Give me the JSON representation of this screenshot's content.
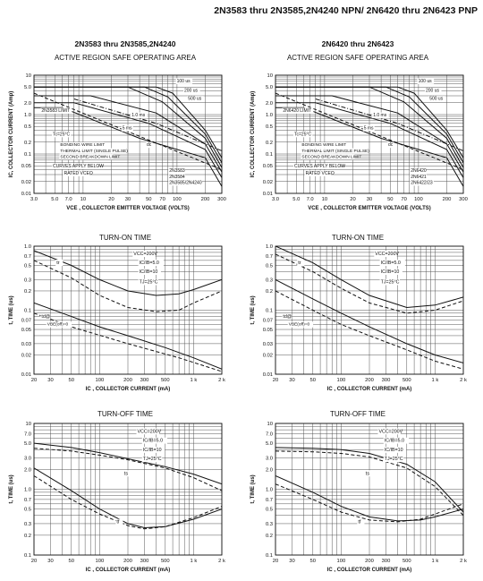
{
  "header": {
    "title": "2N3583 thru 2N3585,2N4240 NPN/ 2N6420 thru 2N6423 PNP",
    "left_section": "2N3583 thru 2N3585,2N4240",
    "right_section": "2N6420 thru 2N6423"
  },
  "chart_data": [
    {
      "id": "soa-npn",
      "type": "line",
      "title": "ACTIVE REGION SAFE OPERATING AREA",
      "xlabel": "VCE , COLLECTOR EMITTER VOLTAGE (VOLTS)",
      "ylabel": "IC, COLLECTOR CURRENT (Amp)",
      "xscale": "log",
      "yscale": "log",
      "xlim": [
        3,
        300
      ],
      "ylim": [
        0.01,
        10
      ],
      "xticks": [
        3,
        5,
        7,
        10,
        20,
        30,
        50,
        70,
        100,
        200,
        300
      ],
      "xtick_labels": [
        "3.0",
        "5.0",
        "7.0",
        "10",
        "20",
        "30",
        "50",
        "70",
        "100",
        "200",
        "300"
      ],
      "yticks": [
        0.01,
        0.02,
        0.05,
        0.1,
        0.2,
        0.5,
        1,
        2,
        5,
        10
      ],
      "ytick_labels": [
        "0.01",
        "0.02",
        "0.05",
        "0.1",
        "0.2",
        "0.5",
        "1.0",
        "2.0",
        "5.0",
        "10"
      ],
      "series": [
        {
          "name": "100 us",
          "dash": "solid",
          "x": [
            3,
            60,
            90,
            200,
            300
          ],
          "y": [
            5,
            5,
            3.5,
            0.4,
            0.08
          ]
        },
        {
          "name": "200 us",
          "dash": "solid",
          "x": [
            3,
            45,
            80,
            200,
            300
          ],
          "y": [
            5,
            5,
            2.8,
            0.32,
            0.06
          ]
        },
        {
          "name": "500 us",
          "dash": "solid",
          "x": [
            3,
            30,
            70,
            200,
            300
          ],
          "y": [
            5,
            5,
            2.1,
            0.25,
            0.045
          ]
        },
        {
          "name": "1.0 ms",
          "dash": "solid",
          "x": [
            3,
            12,
            60,
            200,
            300
          ],
          "y": [
            3,
            3,
            1.1,
            0.18,
            0.035
          ]
        },
        {
          "name": "5 ms",
          "dash": "solid",
          "x": [
            3,
            8,
            50,
            200,
            300
          ],
          "y": [
            2,
            2,
            0.6,
            0.13,
            0.025
          ]
        },
        {
          "name": "dc",
          "dash": "solid",
          "x": [
            3,
            6,
            40,
            200,
            300
          ],
          "y": [
            1.5,
            1.5,
            0.25,
            0.08,
            0.015
          ]
        },
        {
          "name": "",
          "dash": "dashed",
          "x": [
            3,
            40,
            300
          ],
          "y": [
            3.5,
            0.28,
            0.04
          ]
        },
        {
          "name": "",
          "dash": "dashdot",
          "x": [
            8,
            60,
            300
          ],
          "y": [
            2.5,
            0.6,
            0.12
          ]
        }
      ],
      "annotations": {
        "t_100": "100 us",
        "t_200": "200 us",
        "t_500": "500 us",
        "t_1ms": "1.0 ms",
        "t_5ms": "5 ms",
        "t_dc": "dc",
        "limit": "2N3583 LIMIT",
        "temp": "Tc=25°C",
        "legend_bonding": "BONDING WIRE LIMIT",
        "legend_thermal": "THERMAL LIMIT (SINGLE PULSE)",
        "legend_second": "SECOND BREAKDOWN LIMIT",
        "curves1": "CURVES APPLY BELOW",
        "curves2": "RATED VCEO",
        "dev1": "2N3583",
        "dev2": "2N3584",
        "dev3": "2N3585/2N4240"
      }
    },
    {
      "id": "soa-pnp",
      "type": "line",
      "title": "ACTIVE REGION SAFE OPERATING AREA",
      "xlabel": "VCE , COLLECTOR EMITTER VOLTAGE (VOLTS)",
      "ylabel": "IC, COLLECTOR CURRENT (Amp)",
      "xscale": "log",
      "yscale": "log",
      "xlim": [
        3,
        300
      ],
      "ylim": [
        0.01,
        10
      ],
      "xticks": [
        3,
        5,
        7,
        10,
        20,
        30,
        50,
        70,
        100,
        200,
        300
      ],
      "xtick_labels": [
        "3.0",
        "5.0",
        "7.0",
        "10",
        "20",
        "30",
        "50",
        "70",
        "100",
        "200",
        "300"
      ],
      "yticks": [
        0.01,
        0.02,
        0.05,
        0.1,
        0.2,
        0.5,
        1,
        2,
        5,
        10
      ],
      "ytick_labels": [
        "0.01",
        "0.02",
        "0.05",
        "0.1",
        "0.2",
        "0.5",
        "1.0",
        "2.0",
        "5.0",
        "10"
      ],
      "series": [
        {
          "name": "100 us",
          "dash": "solid",
          "x": [
            3,
            60,
            90,
            200,
            300
          ],
          "y": [
            5,
            5,
            3.5,
            0.4,
            0.08
          ]
        },
        {
          "name": "200 us",
          "dash": "solid",
          "x": [
            3,
            45,
            80,
            200,
            300
          ],
          "y": [
            5,
            5,
            2.8,
            0.32,
            0.06
          ]
        },
        {
          "name": "500 us",
          "dash": "solid",
          "x": [
            3,
            30,
            70,
            200,
            300
          ],
          "y": [
            5,
            5,
            2.1,
            0.25,
            0.045
          ]
        },
        {
          "name": "1.0 ms",
          "dash": "solid",
          "x": [
            3,
            12,
            60,
            200,
            300
          ],
          "y": [
            3,
            3,
            1.1,
            0.18,
            0.035
          ]
        },
        {
          "name": "5 ms",
          "dash": "solid",
          "x": [
            3,
            8,
            50,
            200,
            300
          ],
          "y": [
            2,
            2,
            0.6,
            0.13,
            0.025
          ]
        },
        {
          "name": "dc",
          "dash": "solid",
          "x": [
            3,
            6,
            40,
            200,
            300
          ],
          "y": [
            1.5,
            1.5,
            0.25,
            0.08,
            0.015
          ]
        },
        {
          "name": "",
          "dash": "dashed",
          "x": [
            3,
            40,
            300
          ],
          "y": [
            3.5,
            0.28,
            0.04
          ]
        },
        {
          "name": "",
          "dash": "dashdot",
          "x": [
            8,
            60,
            300
          ],
          "y": [
            2.5,
            0.6,
            0.12
          ]
        }
      ],
      "annotations": {
        "t_100": "100 us",
        "t_200": "200 us",
        "t_500": "500 us",
        "t_1ms": "1.0 ms",
        "t_5ms": "5 ms",
        "t_dc": "dc",
        "limit": "2N6420 LIMIT",
        "temp": "Tc=25°C",
        "legend_bonding": "BONDING WIRE LIMIT",
        "legend_thermal": "THERMAL LIMIT (SINGLE PULSE)",
        "legend_second": "SECOND BREAKDOWN LIMIT",
        "curves1": "CURVES APPLY BELOW",
        "curves2": "RATED VCEO",
        "dev1": "2N6420",
        "dev2": "2N6421",
        "dev3": "2N6422/23"
      }
    },
    {
      "id": "ton-npn",
      "type": "line",
      "title": "TURN-ON TIME",
      "xlabel": "IC , COLLECTOR CURRENT (mA)",
      "ylabel": "t, TIME (us)",
      "xscale": "log",
      "yscale": "log",
      "xlim": [
        20,
        2000
      ],
      "ylim": [
        0.01,
        1
      ],
      "xticks": [
        20,
        30,
        50,
        100,
        200,
        300,
        500,
        1000,
        2000
      ],
      "xtick_labels": [
        "20",
        "30",
        "50",
        "100",
        "200",
        "300",
        "500",
        "1 k",
        "2 k"
      ],
      "yticks": [
        0.01,
        0.02,
        0.03,
        0.05,
        0.07,
        0.1,
        0.2,
        0.3,
        0.5,
        0.7,
        1
      ],
      "ytick_labels": [
        "0.01",
        "0.02",
        "0.03",
        "0.05",
        "0.07",
        "0.1",
        "0.2",
        "0.3",
        "0.5",
        "0.7",
        "1.0"
      ],
      "series": [
        {
          "name": "tr",
          "dash": "solid",
          "x": [
            20,
            50,
            100,
            200,
            400,
            700,
            1000,
            2000
          ],
          "y": [
            0.85,
            0.5,
            0.3,
            0.2,
            0.17,
            0.18,
            0.21,
            0.3
          ]
        },
        {
          "name": "tr IB/IB=10",
          "dash": "dashed",
          "x": [
            20,
            50,
            100,
            200,
            400,
            700,
            1000,
            2000
          ],
          "y": [
            0.6,
            0.32,
            0.17,
            0.11,
            0.095,
            0.1,
            0.13,
            0.2
          ]
        },
        {
          "name": "td",
          "dash": "solid",
          "x": [
            20,
            40,
            100,
            200,
            500,
            1000,
            2000
          ],
          "y": [
            0.13,
            0.09,
            0.055,
            0.04,
            0.026,
            0.018,
            0.012
          ]
        },
        {
          "name": "td dashed",
          "dash": "dashed",
          "x": [
            20,
            50,
            200,
            700,
            2000
          ],
          "y": [
            0.09,
            0.055,
            0.03,
            0.018,
            0.011
          ]
        }
      ],
      "annotations": {
        "l1": "VCC=200V",
        "l2": "IC/IB=5.0",
        "l3": "IC/IB=10",
        "l4": "TJ=25°C",
        "tr": "tr",
        "td": "td@",
        "vbe": "VBE(off)=0"
      }
    },
    {
      "id": "ton-pnp",
      "type": "line",
      "title": "TURN-ON TIME",
      "xlabel": "IC , COLLECTOR CURRENT (mA)",
      "ylabel": "t, TIME (us)",
      "xscale": "log",
      "yscale": "log",
      "xlim": [
        20,
        2000
      ],
      "ylim": [
        0.01,
        1
      ],
      "xticks": [
        20,
        30,
        50,
        100,
        200,
        300,
        500,
        1000,
        2000
      ],
      "xtick_labels": [
        "20",
        "30",
        "50",
        "100",
        "200",
        "300",
        "500",
        "1 k",
        "2 k"
      ],
      "yticks": [
        0.01,
        0.02,
        0.03,
        0.05,
        0.07,
        0.1,
        0.2,
        0.3,
        0.5,
        0.7,
        1
      ],
      "ytick_labels": [
        "0.01",
        "0.02",
        "0.03",
        "0.05",
        "0.07",
        "0.1",
        "0.2",
        "0.3",
        "0.5",
        "0.7",
        "1.0"
      ],
      "series": [
        {
          "name": "tr",
          "dash": "solid",
          "x": [
            20,
            50,
            100,
            200,
            500,
            1000,
            2000
          ],
          "y": [
            1,
            0.55,
            0.3,
            0.17,
            0.11,
            0.12,
            0.16
          ]
        },
        {
          "name": "tr dashed",
          "dash": "dashed",
          "x": [
            20,
            50,
            100,
            200,
            500,
            1000,
            2000
          ],
          "y": [
            0.75,
            0.4,
            0.22,
            0.13,
            0.09,
            0.1,
            0.14
          ]
        },
        {
          "name": "td",
          "dash": "solid",
          "x": [
            20,
            50,
            100,
            200,
            500,
            1000,
            2000
          ],
          "y": [
            0.3,
            0.15,
            0.09,
            0.055,
            0.03,
            0.02,
            0.015
          ]
        },
        {
          "name": "td dashed",
          "dash": "dashed",
          "x": [
            20,
            50,
            100,
            200,
            500,
            1000,
            2000
          ],
          "y": [
            0.2,
            0.1,
            0.06,
            0.04,
            0.024,
            0.016,
            0.012
          ]
        }
      ],
      "annotations": {
        "l1": "VCC=200V",
        "l2": "IC/IB=5.0",
        "l3": "IC/IB=10",
        "l4": "TJ=25°C",
        "tr": "tr",
        "td": "td@",
        "vbe": "VBE(off)=0"
      }
    },
    {
      "id": "toff-npn",
      "type": "line",
      "title": "TURN-OFF TIME",
      "xlabel": "IC , COLLECTOR CURRENT (mA)",
      "ylabel": "t, TIME (us)",
      "xscale": "log",
      "yscale": "log",
      "xlim": [
        20,
        2000
      ],
      "ylim": [
        0.1,
        10
      ],
      "xticks": [
        20,
        30,
        50,
        100,
        200,
        300,
        500,
        1000,
        2000
      ],
      "xtick_labels": [
        "20",
        "30",
        "50",
        "100",
        "200",
        "300",
        "500",
        "1 k",
        "2 k"
      ],
      "yticks": [
        0.1,
        0.2,
        0.3,
        0.5,
        0.7,
        1,
        2,
        3,
        5,
        7,
        10
      ],
      "ytick_labels": [
        "0.1",
        "0.2",
        "0.3",
        "0.5",
        "0.7",
        "1.0",
        "2.0",
        "3.0",
        "5.0",
        "7.0",
        "10"
      ],
      "series": [
        {
          "name": "ts",
          "dash": "solid",
          "x": [
            20,
            50,
            100,
            200,
            500,
            1000,
            2000
          ],
          "y": [
            5,
            4.3,
            3.6,
            2.9,
            2.2,
            1.7,
            1.2
          ]
        },
        {
          "name": "ts dashed",
          "dash": "dashed",
          "x": [
            20,
            50,
            100,
            200,
            500,
            1000,
            2000
          ],
          "y": [
            4.2,
            3.8,
            3.3,
            2.8,
            2.1,
            1.5,
            0.95
          ]
        },
        {
          "name": "tf",
          "dash": "solid",
          "x": [
            20,
            50,
            100,
            200,
            300,
            500,
            1000,
            2000
          ],
          "y": [
            2.1,
            0.95,
            0.5,
            0.3,
            0.26,
            0.27,
            0.35,
            0.5
          ]
        },
        {
          "name": "tf dashed",
          "dash": "dashed",
          "x": [
            20,
            50,
            100,
            200,
            300,
            500,
            1000,
            2000
          ],
          "y": [
            1.6,
            0.7,
            0.42,
            0.28,
            0.25,
            0.27,
            0.37,
            0.55
          ]
        }
      ],
      "annotations": {
        "l1": "VCC=200V",
        "l2": "IC/IB=5.0",
        "l3": "IC/IB=10",
        "l4": "TJ=25°C",
        "ts": "ts",
        "tf": "tf"
      }
    },
    {
      "id": "toff-pnp",
      "type": "line",
      "title": "TURN-OFF TIME",
      "xlabel": "IC , COLLECTOR CURRENT (mA)",
      "ylabel": "t, TIME (us)",
      "xscale": "log",
      "yscale": "log",
      "xlim": [
        20,
        2000
      ],
      "ylim": [
        0.1,
        10
      ],
      "xticks": [
        20,
        30,
        50,
        100,
        200,
        300,
        500,
        1000,
        2000
      ],
      "xtick_labels": [
        "20",
        "30",
        "50",
        "100",
        "200",
        "300",
        "500",
        "1 k",
        "2 k"
      ],
      "yticks": [
        0.1,
        0.2,
        0.3,
        0.5,
        0.7,
        1,
        2,
        3,
        5,
        7,
        10
      ],
      "ytick_labels": [
        "0.1",
        "0.2",
        "0.3",
        "0.5",
        "0.7",
        "1.0",
        "2.0",
        "3.0",
        "5.0",
        "7.0",
        "10"
      ],
      "series": [
        {
          "name": "ts",
          "dash": "solid",
          "x": [
            20,
            50,
            100,
            200,
            500,
            1000,
            2000
          ],
          "y": [
            4.3,
            4.2,
            4,
            3.5,
            2.4,
            1.3,
            0.45
          ]
        },
        {
          "name": "ts dashed",
          "dash": "dashed",
          "x": [
            20,
            50,
            100,
            200,
            500,
            1000,
            2000
          ],
          "y": [
            3.8,
            3.7,
            3.5,
            3.1,
            2.1,
            1.1,
            0.4
          ]
        },
        {
          "name": "tf",
          "dash": "solid",
          "x": [
            20,
            50,
            100,
            200,
            400,
            700,
            1000,
            2000
          ],
          "y": [
            1.6,
            0.9,
            0.55,
            0.38,
            0.33,
            0.34,
            0.38,
            0.5
          ]
        },
        {
          "name": "tf dashed",
          "dash": "dashed",
          "x": [
            20,
            50,
            100,
            200,
            400,
            700,
            1000,
            2000
          ],
          "y": [
            1.2,
            0.7,
            0.45,
            0.34,
            0.32,
            0.35,
            0.42,
            0.6
          ]
        }
      ],
      "annotations": {
        "l1": "VCC=200V",
        "l2": "IC/IB=5.0",
        "l3": "IC/IB=10",
        "l4": "TJ=25°C",
        "ts": "ts",
        "tf": "tf"
      }
    }
  ]
}
